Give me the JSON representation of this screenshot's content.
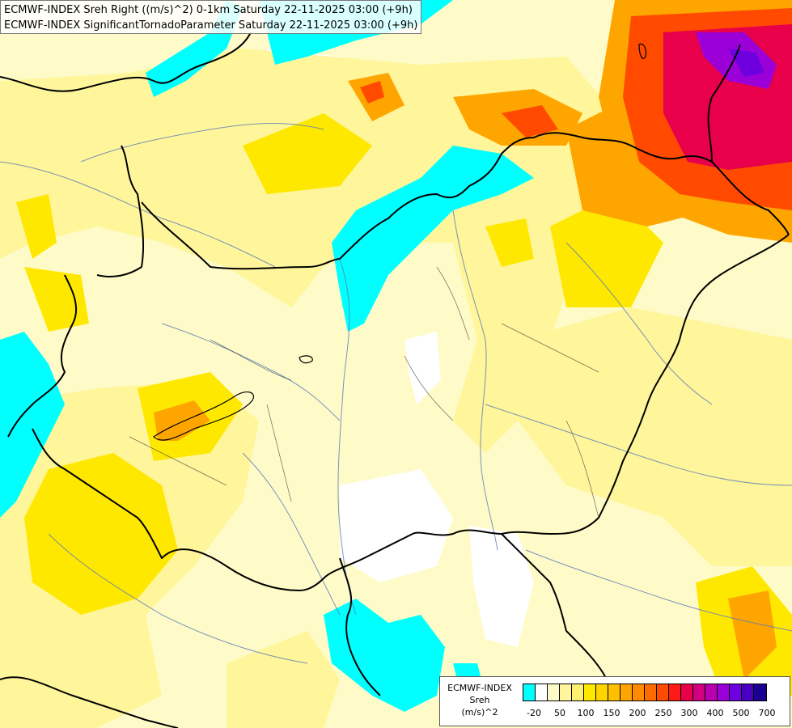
{
  "title": {
    "line1": "ECMWF-INDEX Sreh Right ((m/s)^2) 0-1km Saturday 22-11-2025 03:00 (+9h)",
    "line2": "ECMWF-INDEX SignificantTornadoParameter Saturday 22-11-2025 03:00 (+9h)"
  },
  "legend": {
    "line1": "ECMWF-INDEX",
    "line2": "Sreh",
    "line3": "(m/s)^2",
    "colors": [
      "#00ffff",
      "#ffffff",
      "#fffbc8",
      "#fff59a",
      "#ffef6e",
      "#ffe800",
      "#ffd500",
      "#ffc000",
      "#ffa500",
      "#ff8a00",
      "#ff6a00",
      "#ff4a00",
      "#ff1a1a",
      "#e8004a",
      "#d00080",
      "#b800b0",
      "#9c00d8",
      "#6e00e0",
      "#4a00c0",
      "#1a0090"
    ],
    "ticks": [
      "-20",
      "50",
      "100",
      "150",
      "200",
      "250",
      "300",
      "400",
      "500",
      "700"
    ]
  }
}
